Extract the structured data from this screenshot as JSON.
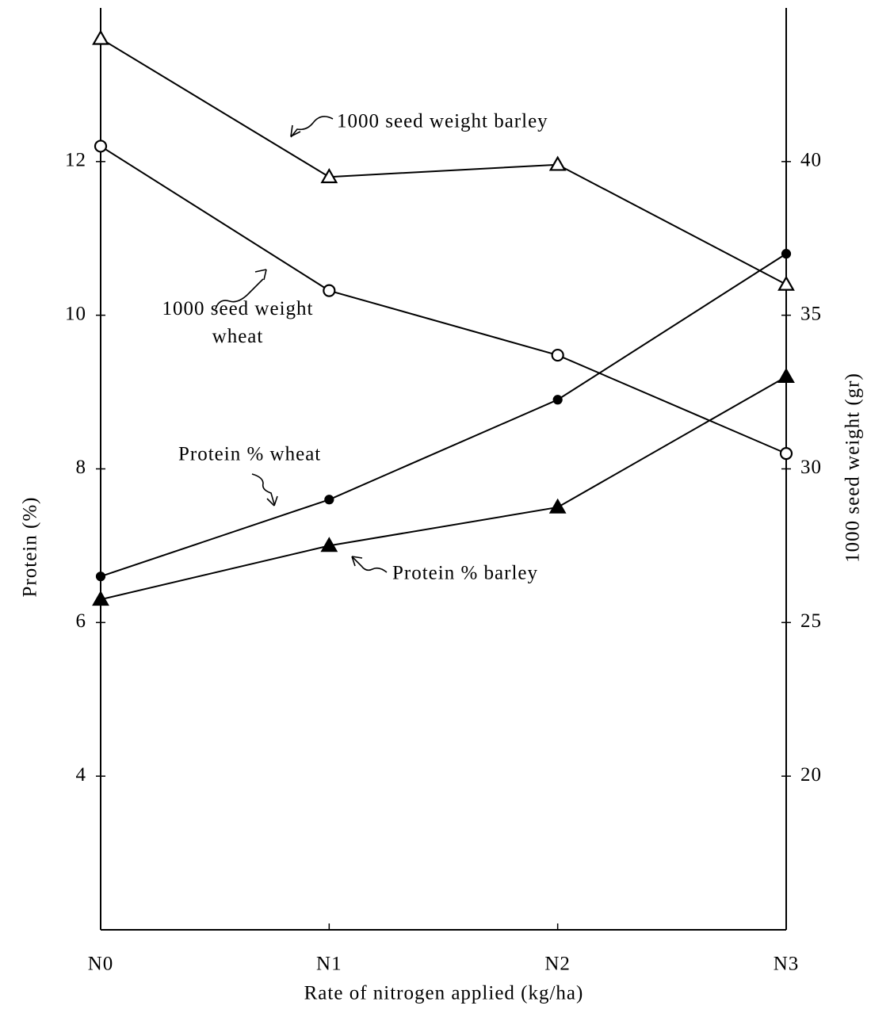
{
  "chart_data": {
    "type": "line",
    "xlabel": "Rate of nitrogen applied  (kg/ha)",
    "ylabel": "Protein (%)",
    "y2label": "1000 seed weight (gr)",
    "categories": [
      "N0",
      "N1",
      "N2",
      "N3"
    ],
    "ylim": [
      2,
      14
    ],
    "yticks": [
      4,
      6,
      8,
      10,
      12
    ],
    "y2lim": [
      15,
      45
    ],
    "y2ticks": [
      20,
      25,
      30,
      35,
      40
    ],
    "grid": false,
    "series": [
      {
        "name": "1000 seed weight barley",
        "color": "#000000",
        "marker": "open-triangle",
        "axis": "y2",
        "values": [
          44,
          39.5,
          39.9,
          36
        ]
      },
      {
        "name": "1000 seed weight wheat",
        "color": "#000000",
        "marker": "open-circle",
        "axis": "y2",
        "values": [
          40.5,
          35.8,
          33.7,
          30.5
        ]
      },
      {
        "name": "Protein % wheat",
        "color": "#000000",
        "marker": "filled-circle",
        "values": [
          6.6,
          7.6,
          8.9,
          10.8
        ]
      },
      {
        "name": "Protein % barley",
        "color": "#000000",
        "marker": "filled-triangle",
        "values": [
          6.3,
          7.0,
          7.5,
          9.2
        ]
      }
    ]
  }
}
